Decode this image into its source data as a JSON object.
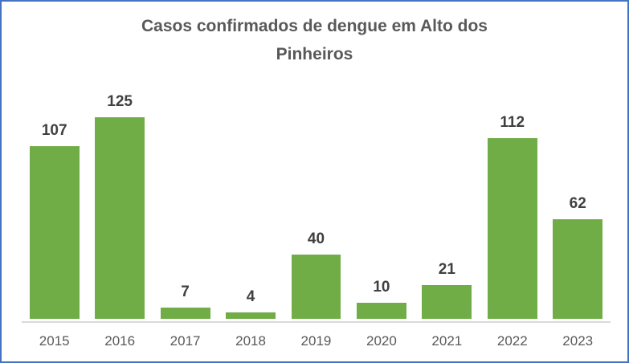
{
  "window": {
    "border_color": "#4472C4",
    "background_color": "#FFFFFF"
  },
  "title": {
    "text": "Casos confirmados de dengue em Alto dos Pinheiros",
    "line1": "Casos confirmados de dengue em Alto dos",
    "line2": "Pinheiros",
    "color": "#595959"
  },
  "chart_data": {
    "type": "bar",
    "title": "Casos confirmados de dengue em Alto dos Pinheiros",
    "categories": [
      "2015",
      "2016",
      "2017",
      "2018",
      "2019",
      "2020",
      "2021",
      "2022",
      "2023"
    ],
    "values": [
      107,
      125,
      7,
      4,
      40,
      10,
      21,
      112,
      62
    ],
    "data_labels_shown": true,
    "ylim": [
      0,
      125
    ],
    "grid": false,
    "legend": "none",
    "bar_color": "#70AD47",
    "value_label_color": "#404040",
    "axis_text_color": "#595959",
    "axis_line_color": "#D9D9D9"
  }
}
